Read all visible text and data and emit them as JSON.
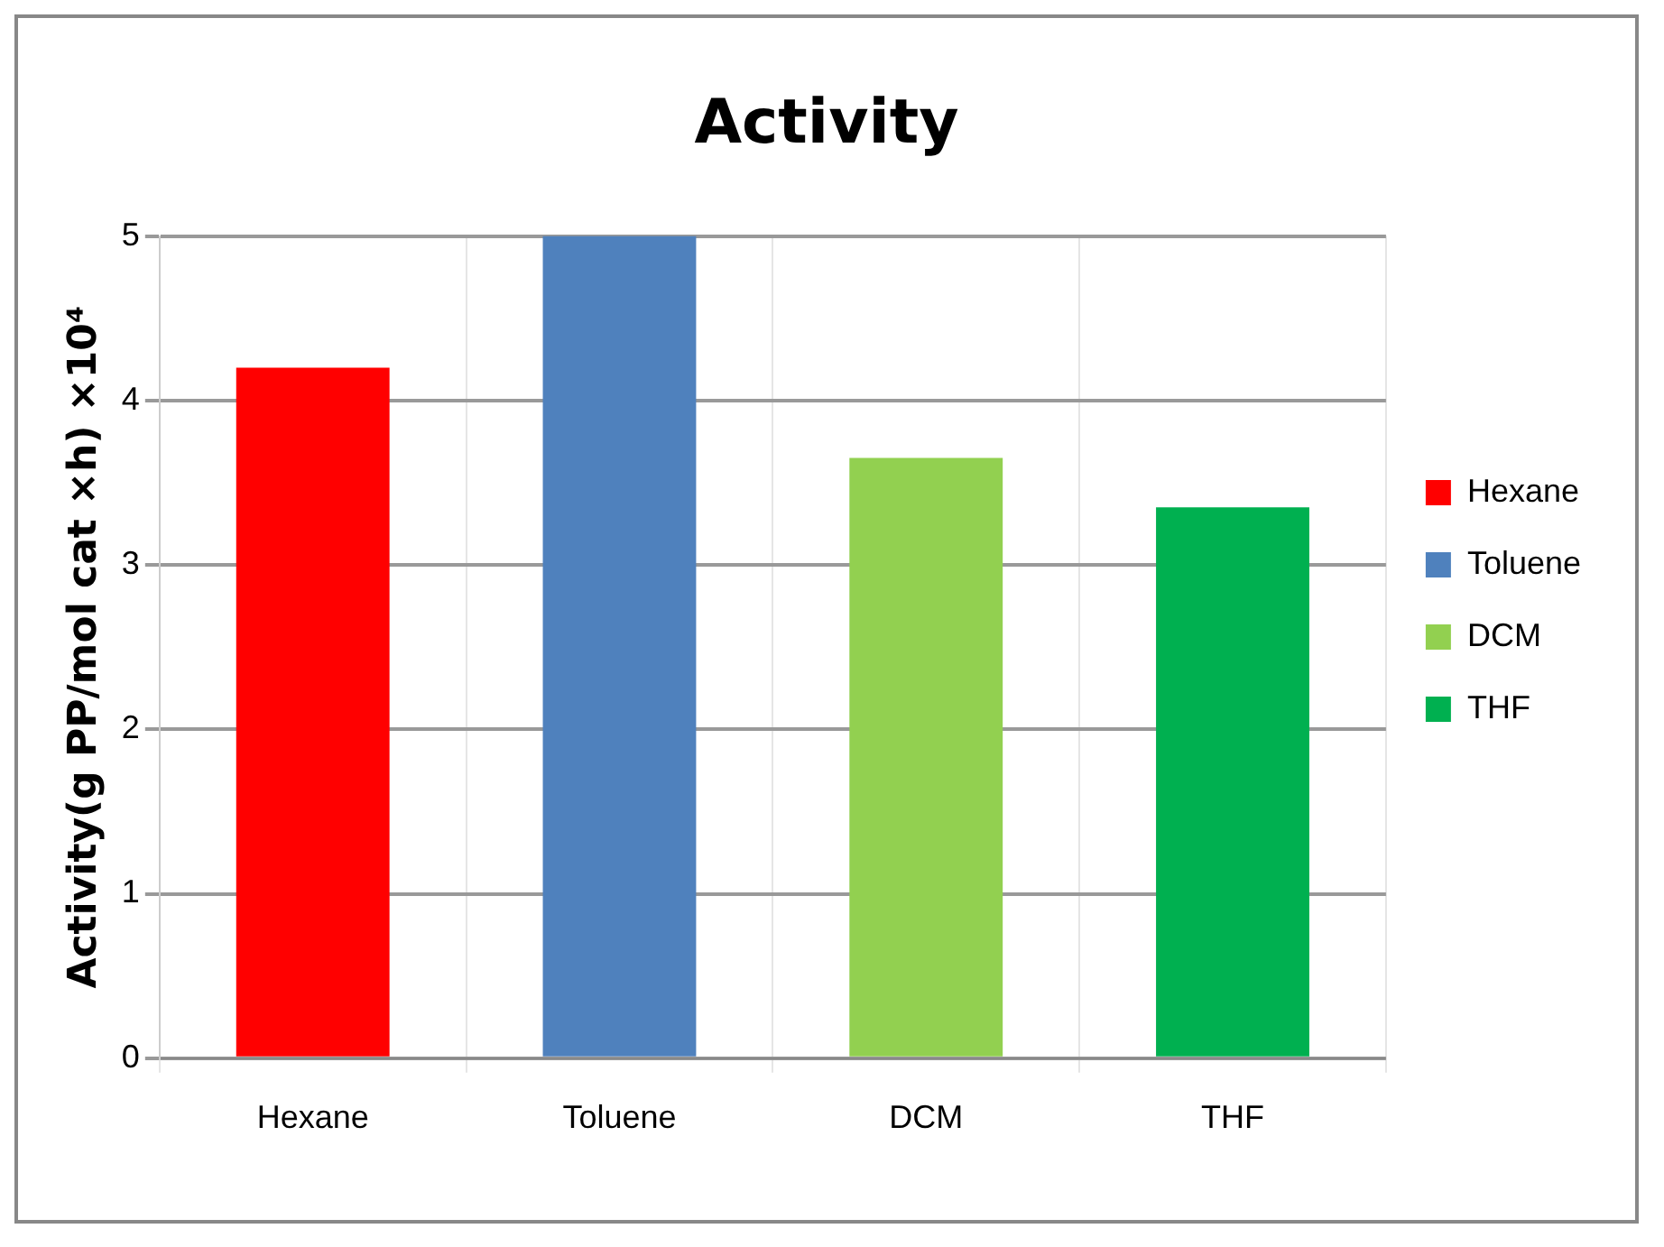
{
  "chart_data": {
    "type": "bar",
    "title": "Activity",
    "ylabel": "Activity(g PP/mol cat ×h) ×10⁴",
    "categories": [
      "Hexane",
      "Toluene",
      "DCM",
      "THF"
    ],
    "series": [
      {
        "name": "Hexane",
        "color": "#ff0000",
        "values": [
          4.2,
          null,
          null,
          null
        ]
      },
      {
        "name": "Toluene",
        "color": "#4f81bd",
        "values": [
          null,
          5.0,
          null,
          null
        ]
      },
      {
        "name": "DCM",
        "color": "#92d050",
        "values": [
          null,
          null,
          3.65,
          null
        ]
      },
      {
        "name": "THF",
        "color": "#00b050",
        "values": [
          null,
          null,
          null,
          3.35
        ]
      }
    ],
    "ylim": [
      0,
      5
    ],
    "yticks": [
      0,
      1,
      2,
      3,
      4,
      5
    ],
    "grid": true,
    "legend": "right"
  }
}
